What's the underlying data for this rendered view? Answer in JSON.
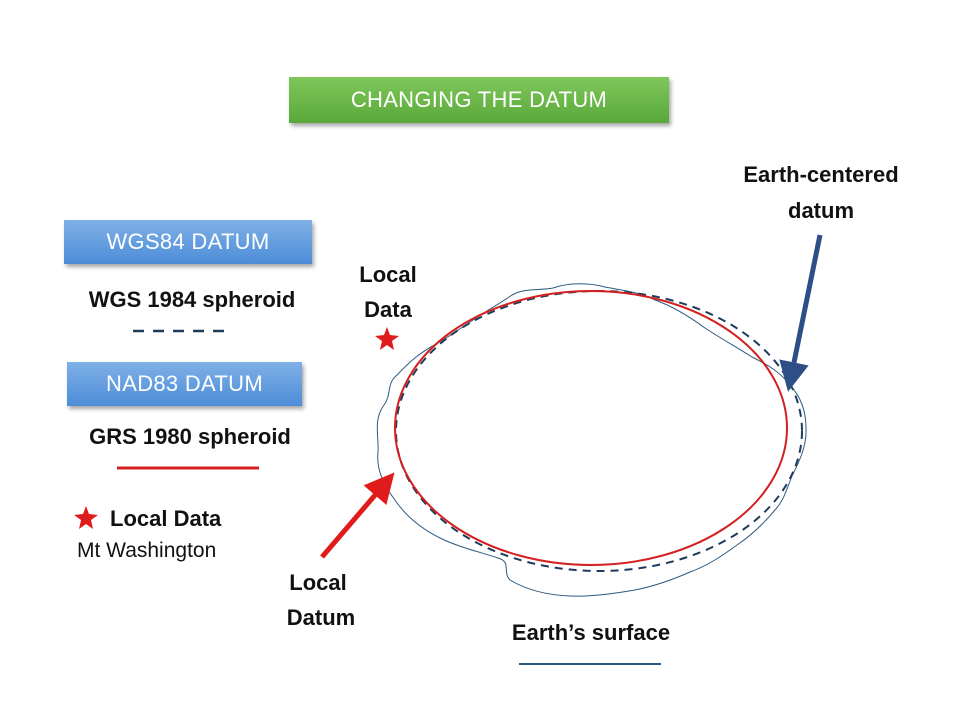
{
  "title": "CHANGING THE DATUM",
  "legend": {
    "wgs84_banner": "WGS84 DATUM",
    "wgs84_spheroid": "WGS 1984 spheroid",
    "nad83_banner": "NAD83 DATUM",
    "nad83_spheroid": "GRS 1980 spheroid",
    "local_data_title": "Local Data",
    "local_data_location": "Mt Washington"
  },
  "diagram": {
    "earth_centered_line1": "Earth-centered",
    "earth_centered_line2": "datum",
    "local_data_line1": "Local",
    "local_data_line2": "Data",
    "local_datum_line1": "Local",
    "local_datum_line2": "Datum",
    "earths_surface": "Earth’s surface"
  },
  "colors": {
    "title_banner": "#6bb845",
    "datum_banner": "#5b9bdc",
    "wgs84_line": "#1f3b5c",
    "grs80_line": "#d42020",
    "surface_line": "#2e5a80",
    "earth_centered_arrow": "#2e4f86",
    "local_datum_arrow": "#e01b1b",
    "star": "#e01b1b"
  }
}
